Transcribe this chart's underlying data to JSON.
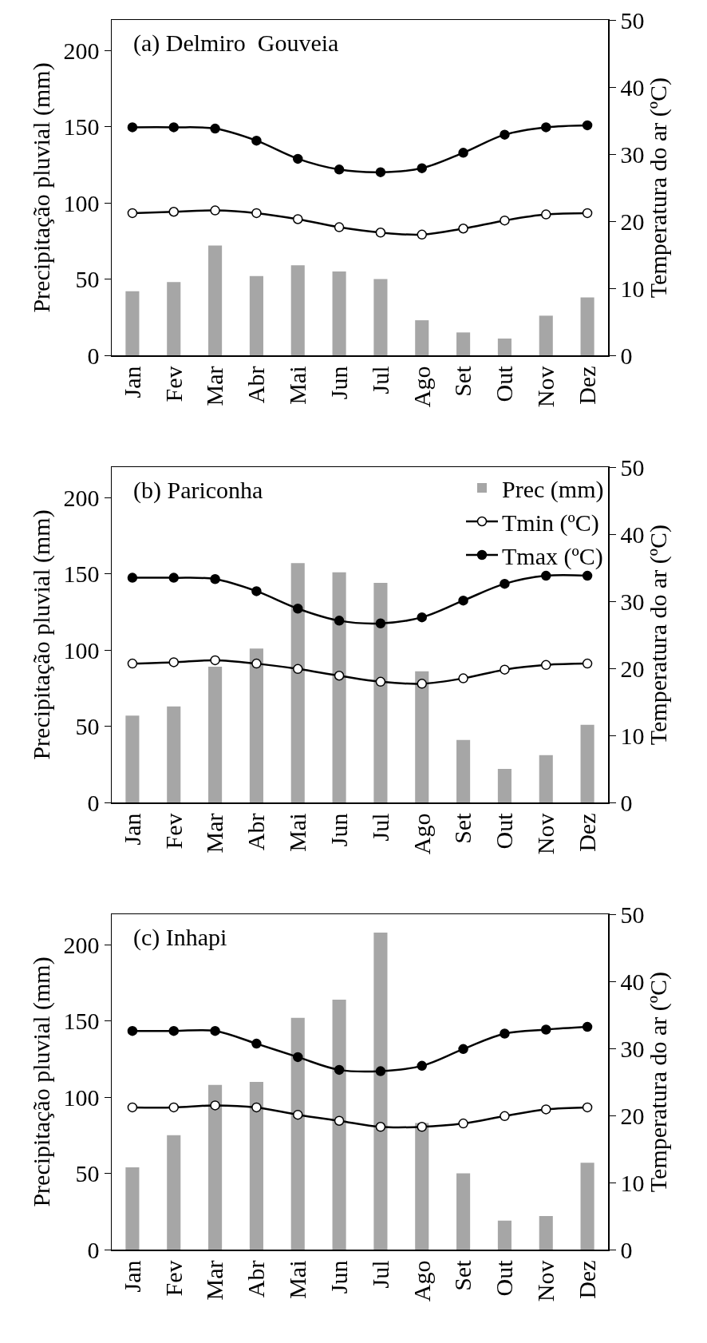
{
  "chart_data": [
    {
      "type": "bar",
      "title": "(a) Delmiro  Gouveia",
      "ylabel": "Precipitação pluvial (mm)",
      "y2label": "Temperatura do ar (ºC)",
      "categories": [
        "Jan",
        "Fev",
        "Mar",
        "Abr",
        "Mai",
        "Jun",
        "Jul",
        "Ago",
        "Set",
        "Out",
        "Nov",
        "Dez"
      ],
      "ylim": [
        0,
        220
      ],
      "yticks": [
        0,
        50,
        100,
        150,
        200
      ],
      "y2lim": [
        0,
        50
      ],
      "y2ticks": [
        0,
        10,
        20,
        30,
        40,
        50
      ],
      "marker": "circle",
      "legend": false,
      "series": [
        {
          "color": "#a6a6a6",
          "values": [
            42,
            48,
            72,
            52,
            59,
            55,
            50,
            23,
            15,
            11,
            26,
            38
          ]
        },
        {
          "type": "line",
          "axis": "y2",
          "color": "#000000",
          "colors": [
            "#ffffff",
            "#ffffff",
            "#ffffff",
            "#ffffff",
            "#ffffff",
            "#ffffff",
            "#ffffff",
            "#ffffff",
            "#ffffff",
            "#ffffff",
            "#ffffff",
            "#ffffff"
          ],
          "values": [
            21.2,
            21.4,
            21.6,
            21.2,
            20.3,
            19.1,
            18.3,
            18.0,
            18.9,
            20.1,
            21.0,
            21.2
          ]
        },
        {
          "type": "line",
          "axis": "y2",
          "color": "#000000",
          "values": [
            34.0,
            34.0,
            33.8,
            32.0,
            29.3,
            27.7,
            27.3,
            27.9,
            30.2,
            32.9,
            34.0,
            34.3
          ]
        }
      ]
    },
    {
      "type": "bar",
      "title": "(b) Pariconha",
      "ylabel": "Precipitação pluvial (mm)",
      "y2label": "Temperatura do ar (ºC)",
      "categories": [
        "Jan",
        "Fev",
        "Mar",
        "Abr",
        "Mai",
        "Jun",
        "Jul",
        "Ago",
        "Set",
        "Out",
        "Nov",
        "Dez"
      ],
      "ylim": [
        0,
        220
      ],
      "yticks": [
        0,
        50,
        100,
        150,
        200
      ],
      "y2lim": [
        0,
        50
      ],
      "y2ticks": [
        0,
        10,
        20,
        30,
        40,
        50
      ],
      "marker": "circle",
      "legend": "top right",
      "series": [
        {
          "name": "Prec (mm)",
          "color": "#a6a6a6",
          "values": [
            57,
            63,
            89,
            101,
            157,
            151,
            144,
            86,
            41,
            22,
            31,
            51
          ]
        },
        {
          "type": "line",
          "axis": "y2",
          "name": "Tmin (ºC)",
          "color": "#000000",
          "colors": [
            "#ffffff",
            "#ffffff",
            "#ffffff",
            "#ffffff",
            "#ffffff",
            "#ffffff",
            "#ffffff",
            "#ffffff",
            "#ffffff",
            "#ffffff",
            "#ffffff",
            "#ffffff"
          ],
          "values": [
            20.7,
            20.9,
            21.2,
            20.7,
            19.9,
            18.9,
            18.0,
            17.7,
            18.5,
            19.8,
            20.5,
            20.7
          ]
        },
        {
          "type": "line",
          "axis": "y2",
          "name": "Tmax (ºC)",
          "color": "#000000",
          "values": [
            33.5,
            33.5,
            33.3,
            31.5,
            28.9,
            27.1,
            26.7,
            27.6,
            30.1,
            32.6,
            33.8,
            33.8
          ]
        }
      ]
    },
    {
      "type": "bar",
      "title": "(c) Inhapi",
      "ylabel": "Precipitação pluvial (mm)",
      "y2label": "Temperatura do ar (ºC)",
      "categories": [
        "Jan",
        "Fev",
        "Mar",
        "Abr",
        "Mai",
        "Jun",
        "Jul",
        "Ago",
        "Set",
        "Out",
        "Nov",
        "Dez"
      ],
      "ylim": [
        0,
        220
      ],
      "yticks": [
        0,
        50,
        100,
        150,
        200
      ],
      "y2lim": [
        0,
        50
      ],
      "y2ticks": [
        0,
        10,
        20,
        30,
        40,
        50
      ],
      "marker": "circle",
      "legend": false,
      "series": [
        {
          "color": "#a6a6a6",
          "values": [
            54,
            75,
            108,
            110,
            152,
            164,
            208,
            83,
            50,
            19,
            22,
            57
          ]
        },
        {
          "type": "line",
          "axis": "y2",
          "color": "#000000",
          "colors": [
            "#ffffff",
            "#ffffff",
            "#ffffff",
            "#ffffff",
            "#ffffff",
            "#ffffff",
            "#ffffff",
            "#ffffff",
            "#ffffff",
            "#ffffff",
            "#ffffff",
            "#ffffff"
          ],
          "values": [
            21.2,
            21.2,
            21.5,
            21.2,
            20.1,
            19.2,
            18.3,
            18.3,
            18.8,
            19.9,
            20.9,
            21.2
          ]
        },
        {
          "type": "line",
          "axis": "y2",
          "color": "#000000",
          "values": [
            32.6,
            32.6,
            32.6,
            30.7,
            28.7,
            26.8,
            26.6,
            27.4,
            29.9,
            32.2,
            32.8,
            33.2
          ]
        }
      ]
    }
  ]
}
